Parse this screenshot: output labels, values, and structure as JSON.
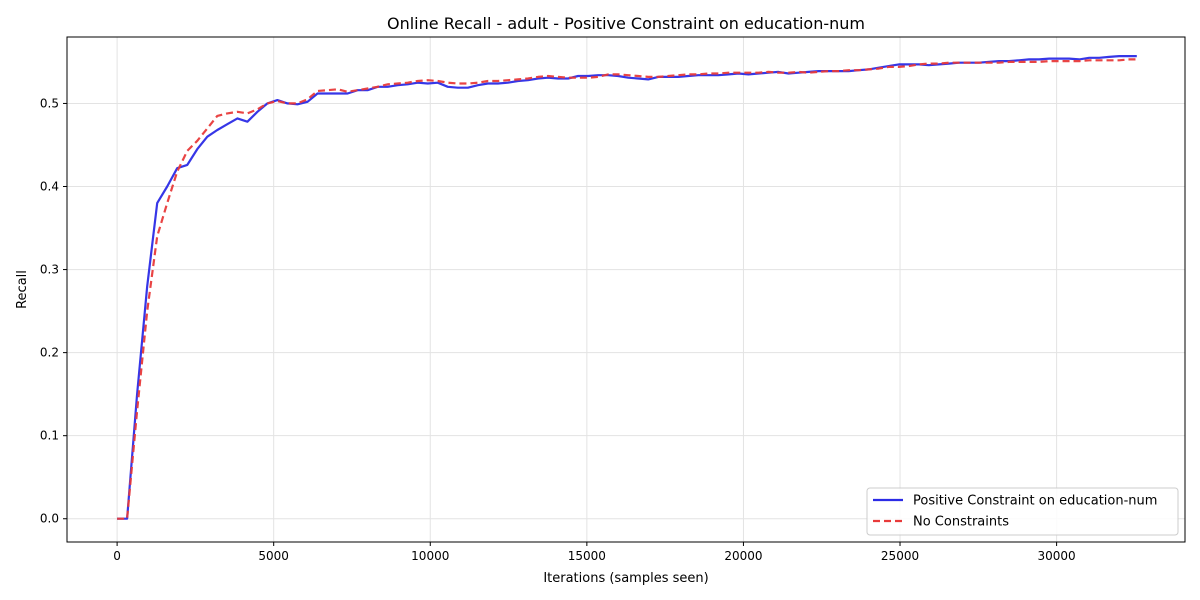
{
  "chart_data": {
    "type": "line",
    "title": "Online Recall - adult - Positive Constraint on education-num",
    "xlabel": "Iterations (samples seen)",
    "ylabel": "Recall",
    "xlim": [
      -1600,
      34100
    ],
    "ylim": [
      -0.028,
      0.58
    ],
    "xticks": [
      0,
      5000,
      10000,
      15000,
      20000,
      25000,
      30000
    ],
    "yticks": [
      0.0,
      0.1,
      0.2,
      0.3,
      0.4,
      0.5
    ],
    "grid": true,
    "legend_position": "bottom-right",
    "series": [
      {
        "name": "Positive Constraint on education-num",
        "color": "#2b2be6",
        "style": "solid",
        "x": [
          0,
          320,
          640,
          960,
          1280,
          1600,
          1920,
          2240,
          2560,
          2880,
          3200,
          3520,
          3840,
          4160,
          4480,
          4800,
          5120,
          5440,
          5760,
          6080,
          6400,
          6720,
          7040,
          7360,
          7680,
          8000,
          8320,
          8640,
          8960,
          9280,
          9600,
          9920,
          10240,
          10560,
          10880,
          11200,
          11520,
          11840,
          12160,
          12480,
          12800,
          13120,
          13440,
          13760,
          14080,
          14400,
          14720,
          15040,
          15360,
          15680,
          16000,
          16320,
          16640,
          16960,
          17280,
          17600,
          17920,
          18240,
          18560,
          18880,
          19200,
          19520,
          19840,
          20160,
          20480,
          20800,
          21120,
          21440,
          21760,
          22080,
          22400,
          22720,
          23040,
          23360,
          23680,
          24000,
          24320,
          24640,
          24960,
          25280,
          25600,
          25920,
          26240,
          26560,
          26880,
          27200,
          27520,
          27840,
          28160,
          28480,
          28800,
          29120,
          29440,
          29760,
          30080,
          30400,
          30720,
          31040,
          31360,
          31680,
          32000,
          32320,
          32560
        ],
        "values": [
          0.0,
          0.0,
          0.15,
          0.28,
          0.38,
          0.4,
          0.422,
          0.426,
          0.445,
          0.46,
          0.468,
          0.475,
          0.482,
          0.478,
          0.49,
          0.5,
          0.504,
          0.5,
          0.499,
          0.502,
          0.512,
          0.512,
          0.512,
          0.512,
          0.516,
          0.516,
          0.52,
          0.52,
          0.522,
          0.523,
          0.525,
          0.524,
          0.525,
          0.52,
          0.519,
          0.519,
          0.522,
          0.524,
          0.524,
          0.525,
          0.527,
          0.528,
          0.53,
          0.531,
          0.53,
          0.53,
          0.533,
          0.533,
          0.534,
          0.534,
          0.533,
          0.531,
          0.53,
          0.529,
          0.532,
          0.532,
          0.532,
          0.533,
          0.534,
          0.534,
          0.534,
          0.535,
          0.536,
          0.535,
          0.536,
          0.537,
          0.538,
          0.536,
          0.537,
          0.538,
          0.539,
          0.539,
          0.539,
          0.539,
          0.54,
          0.541,
          0.543,
          0.545,
          0.547,
          0.547,
          0.547,
          0.546,
          0.547,
          0.548,
          0.549,
          0.549,
          0.549,
          0.55,
          0.551,
          0.551,
          0.552,
          0.553,
          0.553,
          0.554,
          0.554,
          0.554,
          0.553,
          0.555,
          0.555,
          0.556,
          0.557,
          0.557,
          0.557
        ]
      },
      {
        "name": "No Constraints",
        "color": "#e83a3a",
        "style": "dashed",
        "x": [
          0,
          320,
          640,
          960,
          1280,
          1600,
          1920,
          2240,
          2560,
          2880,
          3200,
          3520,
          3840,
          4160,
          4480,
          4800,
          5120,
          5440,
          5760,
          6080,
          6400,
          6720,
          7040,
          7360,
          7680,
          8000,
          8320,
          8640,
          8960,
          9280,
          9600,
          9920,
          10240,
          10560,
          10880,
          11200,
          11520,
          11840,
          12160,
          12480,
          12800,
          13120,
          13440,
          13760,
          14080,
          14400,
          14720,
          15040,
          15360,
          15680,
          16000,
          16320,
          16640,
          16960,
          17280,
          17600,
          17920,
          18240,
          18560,
          18880,
          19200,
          19520,
          19840,
          20160,
          20480,
          20800,
          21120,
          21440,
          21760,
          22080,
          22400,
          22720,
          23040,
          23360,
          23680,
          24000,
          24320,
          24640,
          24960,
          25280,
          25600,
          25920,
          26240,
          26560,
          26880,
          27200,
          27520,
          27840,
          28160,
          28480,
          28800,
          29120,
          29440,
          29760,
          30080,
          30400,
          30720,
          31040,
          31360,
          31680,
          32000,
          32320,
          32560
        ],
        "values": [
          0.0,
          0.0,
          0.13,
          0.25,
          0.34,
          0.38,
          0.418,
          0.443,
          0.455,
          0.47,
          0.485,
          0.488,
          0.49,
          0.488,
          0.493,
          0.5,
          0.503,
          0.5,
          0.5,
          0.505,
          0.515,
          0.516,
          0.517,
          0.514,
          0.516,
          0.518,
          0.52,
          0.523,
          0.524,
          0.525,
          0.527,
          0.528,
          0.527,
          0.525,
          0.524,
          0.524,
          0.525,
          0.527,
          0.527,
          0.528,
          0.529,
          0.53,
          0.532,
          0.533,
          0.532,
          0.531,
          0.531,
          0.531,
          0.532,
          0.535,
          0.535,
          0.534,
          0.533,
          0.532,
          0.532,
          0.533,
          0.534,
          0.535,
          0.535,
          0.536,
          0.536,
          0.537,
          0.537,
          0.537,
          0.537,
          0.538,
          0.537,
          0.537,
          0.538,
          0.537,
          0.538,
          0.539,
          0.539,
          0.54,
          0.54,
          0.541,
          0.542,
          0.544,
          0.544,
          0.545,
          0.547,
          0.548,
          0.548,
          0.549,
          0.549,
          0.549,
          0.549,
          0.549,
          0.549,
          0.55,
          0.55,
          0.55,
          0.55,
          0.551,
          0.551,
          0.551,
          0.551,
          0.552,
          0.552,
          0.552,
          0.552,
          0.553,
          0.553
        ]
      }
    ]
  }
}
